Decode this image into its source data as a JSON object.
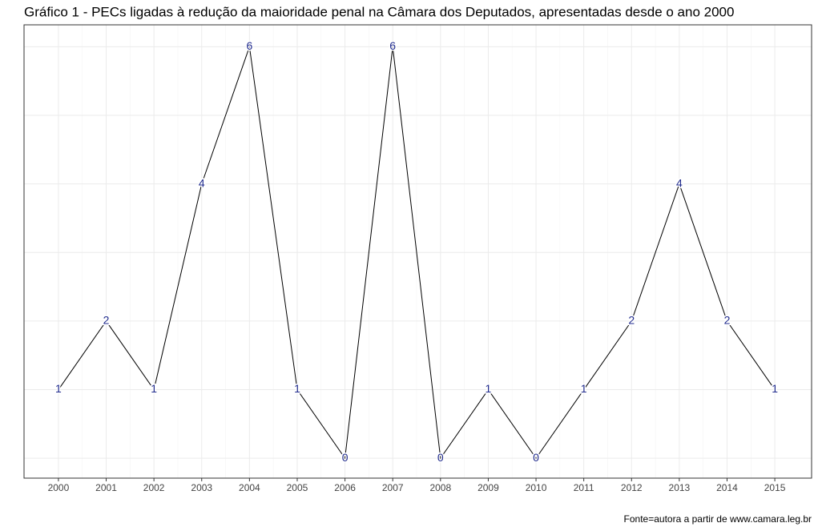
{
  "chart_data": {
    "type": "line",
    "title": "Gráfico 1 - PECs ligadas à redução da maioridade penal na Câmara dos Deputados, apresentadas desde o ano 2000",
    "caption": "Fonte=autora a partir de www.camara.leg.br",
    "x": [
      2000,
      2001,
      2002,
      2003,
      2004,
      2005,
      2006,
      2007,
      2008,
      2009,
      2010,
      2011,
      2012,
      2013,
      2014,
      2015
    ],
    "series": [
      {
        "color": "#000000",
        "label_color": "#1f2a8c",
        "values": [
          1,
          2,
          1,
          4,
          6,
          1,
          0,
          6,
          0,
          1,
          0,
          1,
          2,
          4,
          2,
          1
        ]
      }
    ],
    "xlim": [
      1999.28,
      2015.77
    ],
    "xticks": [
      2000,
      2001,
      2002,
      2003,
      2004,
      2005,
      2006,
      2007,
      2008,
      2009,
      2010,
      2011,
      2012,
      2013,
      2014,
      2015
    ],
    "ylim": [
      -0.29,
      6.32
    ],
    "yticks": [
      0,
      1,
      2,
      3,
      4,
      5,
      6
    ],
    "grid": true
  }
}
